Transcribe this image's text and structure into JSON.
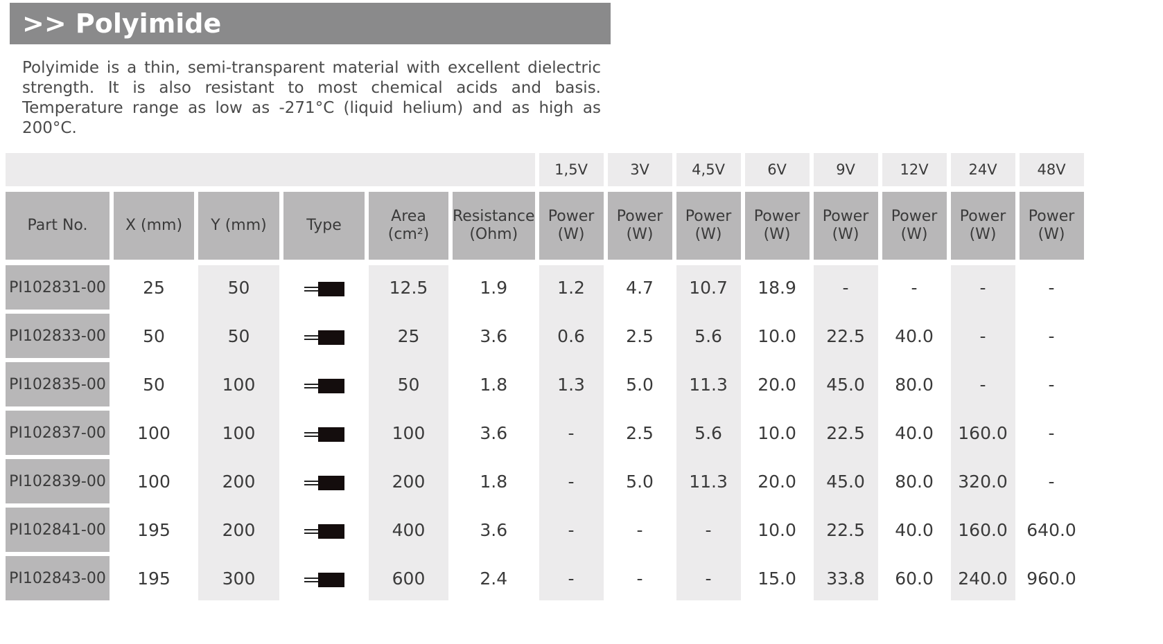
{
  "title": ">> Polyimide",
  "description": "Polyimide is a thin, semi-transparent material with excellent dielectric strength. It is also resistant to most chemical acids and basis. Temperature range as low as -271°C (liquid helium) and as high as 200°C.",
  "voltages": [
    "1,5V",
    "3V",
    "4,5V",
    "6V",
    "9V",
    "12V",
    "24V",
    "48V"
  ],
  "headers": {
    "part_no": "Part No.",
    "x": "X (mm)",
    "y": "Y (mm)",
    "type": "Type",
    "area_line1": "Area",
    "area_line2": "(cm²)",
    "resistance_line1": "Resistance",
    "resistance_line2": "(Ohm)",
    "power_line1": "Power",
    "power_line2": "(W)"
  },
  "rows": [
    {
      "part": "PI102831-00",
      "x": "25",
      "y": "50",
      "type_icon": "heater-element-icon",
      "area": "12.5",
      "resistance": "1.9",
      "power": [
        "1.2",
        "4.7",
        "10.7",
        "18.9",
        "-",
        "-",
        "-",
        "-"
      ]
    },
    {
      "part": "PI102833-00",
      "x": "50",
      "y": "50",
      "type_icon": "heater-element-icon",
      "area": "25",
      "resistance": "3.6",
      "power": [
        "0.6",
        "2.5",
        "5.6",
        "10.0",
        "22.5",
        "40.0",
        "-",
        "-"
      ]
    },
    {
      "part": "PI102835-00",
      "x": "50",
      "y": "100",
      "type_icon": "heater-element-icon",
      "area": "50",
      "resistance": "1.8",
      "power": [
        "1.3",
        "5.0",
        "11.3",
        "20.0",
        "45.0",
        "80.0",
        "-",
        "-"
      ]
    },
    {
      "part": "PI102837-00",
      "x": "100",
      "y": "100",
      "type_icon": "heater-element-icon",
      "area": "100",
      "resistance": "3.6",
      "power": [
        "-",
        "2.5",
        "5.6",
        "10.0",
        "22.5",
        "40.0",
        "160.0",
        "-"
      ]
    },
    {
      "part": "PI102839-00",
      "x": "100",
      "y": "200",
      "type_icon": "heater-element-icon",
      "area": "200",
      "resistance": "1.8",
      "power": [
        "-",
        "5.0",
        "11.3",
        "20.0",
        "45.0",
        "80.0",
        "320.0",
        "-"
      ]
    },
    {
      "part": "PI102841-00",
      "x": "195",
      "y": "200",
      "type_icon": "heater-element-icon",
      "area": "400",
      "resistance": "3.6",
      "power": [
        "-",
        "-",
        "-",
        "10.0",
        "22.5",
        "40.0",
        "160.0",
        "640.0"
      ]
    },
    {
      "part": "PI102843-00",
      "x": "195",
      "y": "300",
      "type_icon": "heater-element-icon",
      "area": "600",
      "resistance": "2.4",
      "power": [
        "-",
        "-",
        "-",
        "15.0",
        "33.8",
        "60.0",
        "240.0",
        "960.0"
      ]
    }
  ],
  "colors": {
    "title_bar": "#8a8a8b",
    "header_cell": "#b8b7b8",
    "shaded_column": "#ecebec",
    "icon": "#140d0d"
  }
}
